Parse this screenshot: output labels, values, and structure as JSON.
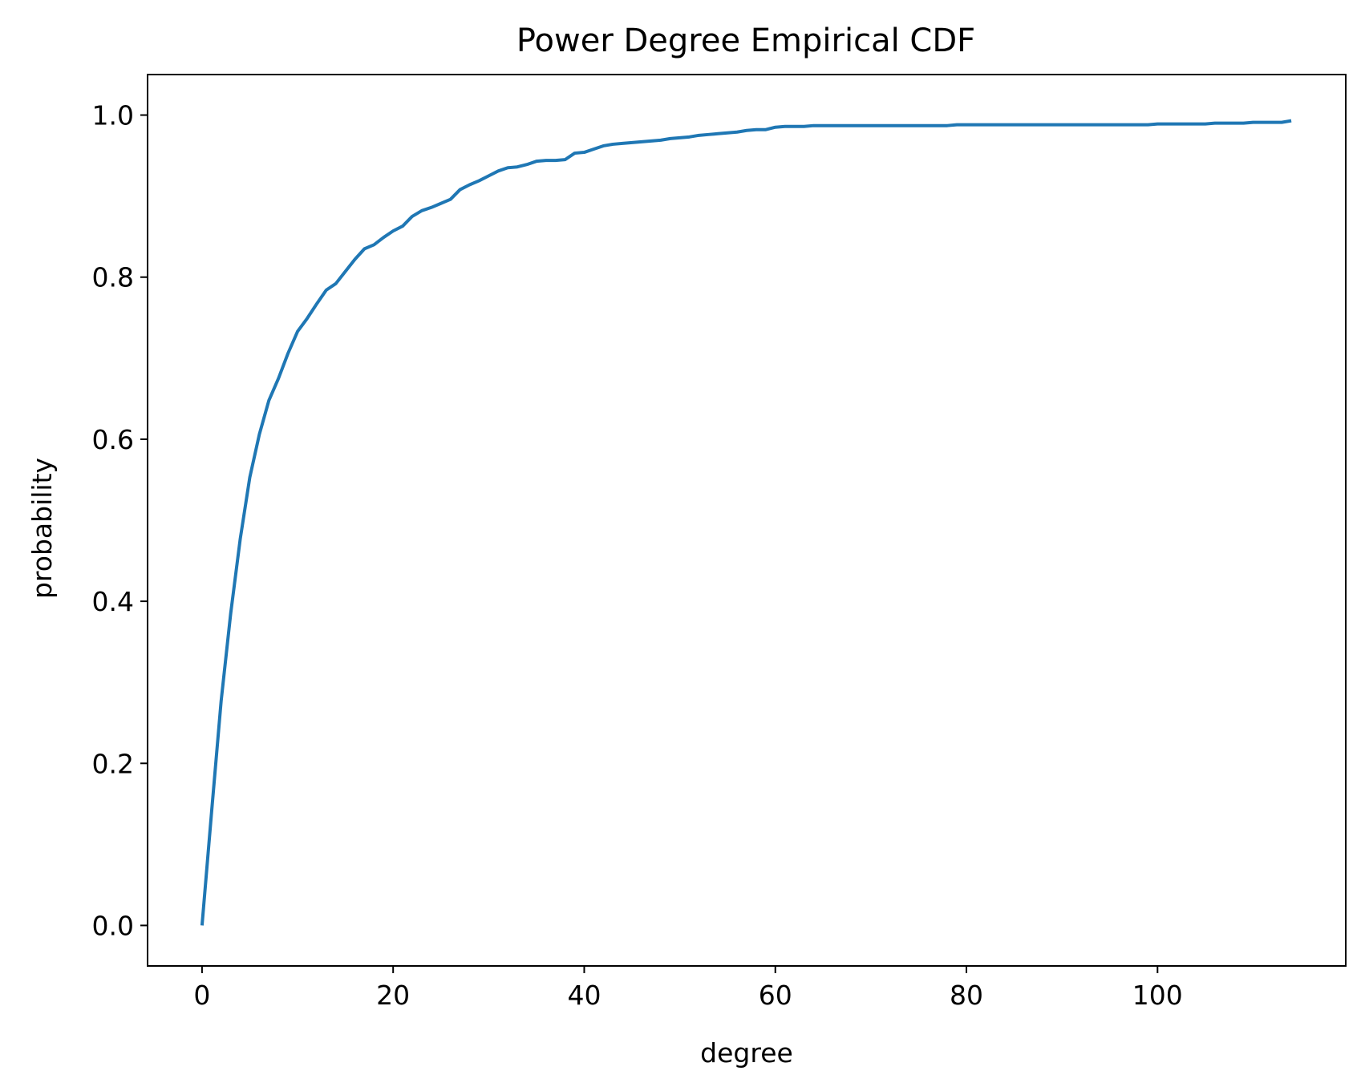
{
  "chart_data": {
    "type": "line",
    "title": "Power Degree Empirical CDF",
    "xlabel": "degree",
    "ylabel": "probability",
    "xlim": [
      -5.7,
      119.7
    ],
    "ylim": [
      -0.05,
      1.05
    ],
    "xticks": [
      0,
      20,
      40,
      60,
      80,
      100
    ],
    "xtick_labels": [
      "0",
      "20",
      "40",
      "60",
      "80",
      "100"
    ],
    "yticks": [
      0.0,
      0.2,
      0.4,
      0.6,
      0.8,
      1.0
    ],
    "ytick_labels": [
      "0.0",
      "0.2",
      "0.4",
      "0.6",
      "0.8",
      "1.0"
    ],
    "grid": false,
    "line_color": "#1f77b4",
    "series": [
      {
        "name": "Power Degree Empirical CDF",
        "x": [
          0,
          1,
          2,
          3,
          4,
          5,
          6,
          7,
          8,
          9,
          10,
          11,
          12,
          13,
          14,
          15,
          16,
          17,
          18,
          19,
          20,
          21,
          22,
          23,
          24,
          25,
          26,
          27,
          28,
          29,
          30,
          31,
          32,
          33,
          34,
          35,
          36,
          37,
          38,
          39,
          40,
          41,
          42,
          43,
          44,
          45,
          46,
          47,
          48,
          49,
          50,
          51,
          52,
          53,
          54,
          55,
          56,
          57,
          58,
          59,
          60,
          61,
          62,
          63,
          64,
          70,
          78,
          79,
          85,
          90,
          95,
          99,
          100,
          105,
          106,
          109,
          110,
          113,
          114
        ],
        "values": [
          0.0,
          0.14,
          0.277,
          0.385,
          0.477,
          0.553,
          0.606,
          0.648,
          0.675,
          0.706,
          0.733,
          0.749,
          0.767,
          0.784,
          0.792,
          0.807,
          0.822,
          0.835,
          0.84,
          0.849,
          0.857,
          0.863,
          0.875,
          0.882,
          0.886,
          0.891,
          0.896,
          0.908,
          0.914,
          0.919,
          0.925,
          0.931,
          0.935,
          0.936,
          0.939,
          0.943,
          0.944,
          0.944,
          0.945,
          0.953,
          0.954,
          0.958,
          0.962,
          0.964,
          0.965,
          0.966,
          0.967,
          0.968,
          0.969,
          0.971,
          0.972,
          0.973,
          0.975,
          0.976,
          0.977,
          0.978,
          0.979,
          0.981,
          0.982,
          0.982,
          0.985,
          0.986,
          0.986,
          0.986,
          0.987,
          0.987,
          0.987,
          0.988,
          0.988,
          0.988,
          0.988,
          0.988,
          0.989,
          0.989,
          0.99,
          0.99,
          0.991,
          0.991,
          0.993
        ]
      }
    ]
  }
}
